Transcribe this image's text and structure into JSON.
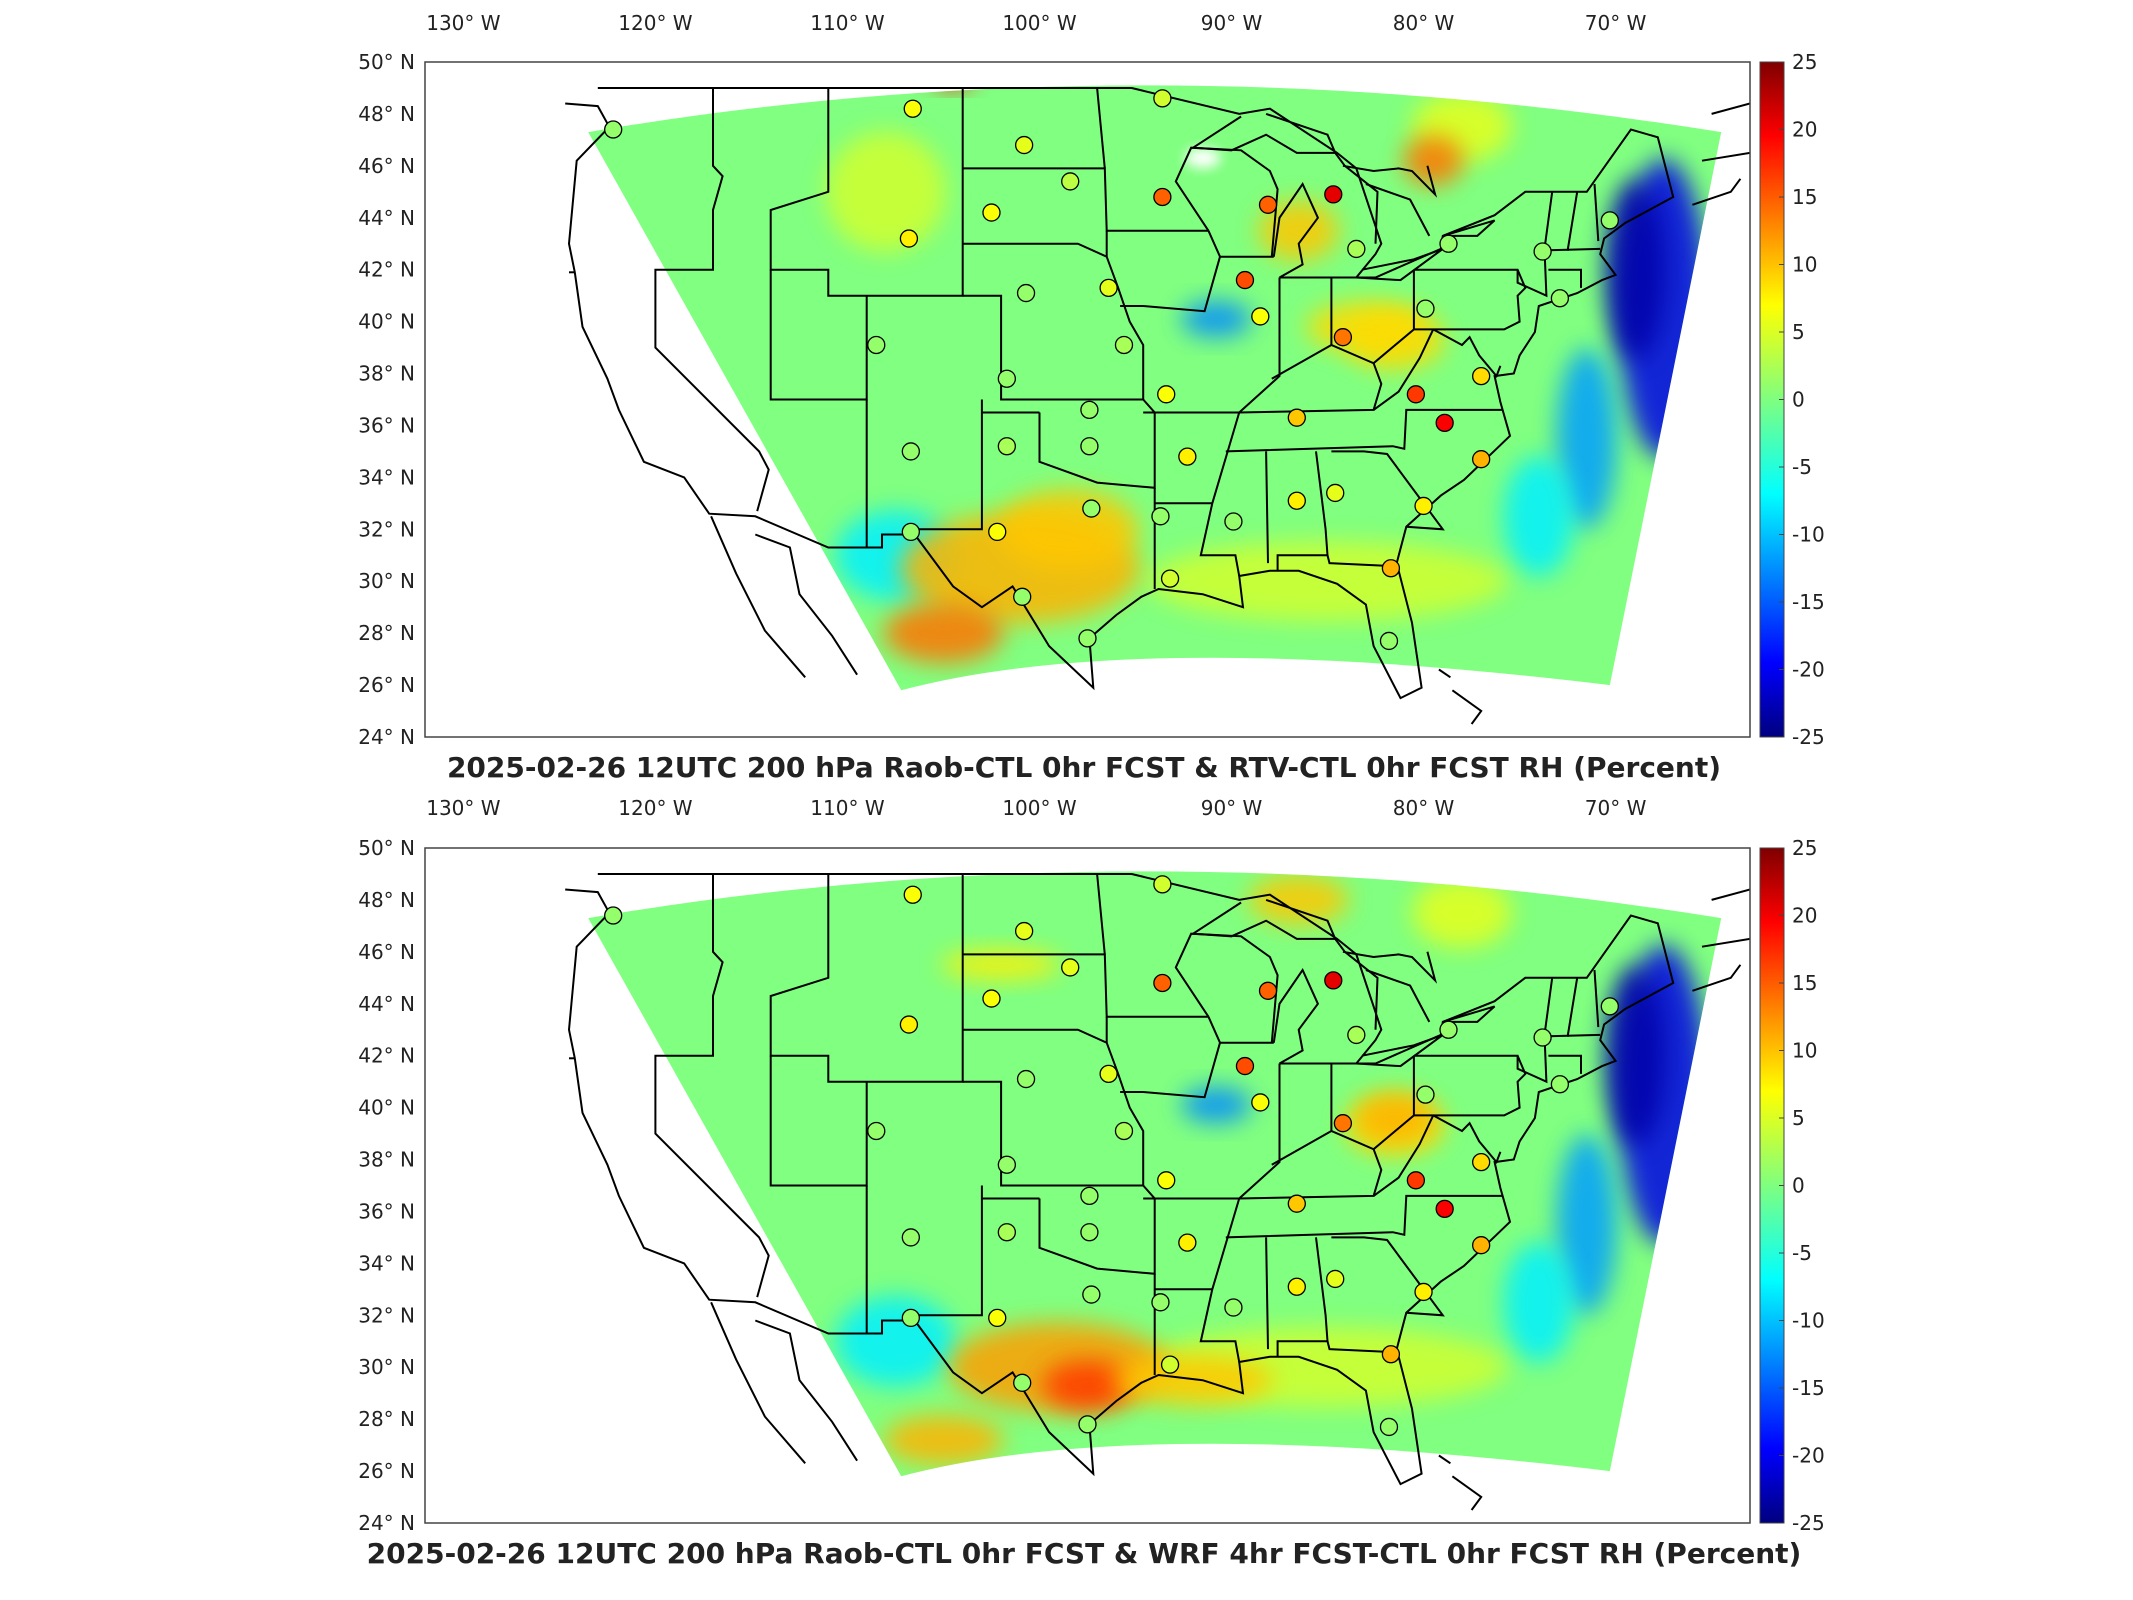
{
  "panels": [
    {
      "title": "2025-02-26 12UTC 200 hPa Raob-CTL 0hr FCST & RTV-CTL 0hr FCST RH (Percent)",
      "variant": "rtv"
    },
    {
      "title": "2025-02-26 12UTC 200 hPa Raob-CTL 0hr FCST & WRF 4hr FCST-CTL 0hr FCST RH (Percent)",
      "variant": "wrf"
    }
  ],
  "lon_labels": [
    "130° W",
    "120° W",
    "110° W",
    "100° W",
    "90° W",
    "80° W",
    "70° W"
  ],
  "lon_values": [
    -130,
    -120,
    -110,
    -100,
    -90,
    -80,
    -70
  ],
  "lat_labels": [
    "50° N",
    "48° N",
    "46° N",
    "44° N",
    "42° N",
    "40° N",
    "38° N",
    "36° N",
    "34° N",
    "32° N",
    "30° N",
    "28° N",
    "26° N",
    "24° N"
  ],
  "lat_values": [
    50,
    48,
    46,
    44,
    42,
    40,
    38,
    36,
    34,
    32,
    30,
    28,
    26,
    24
  ],
  "colorbar": {
    "ticks": [
      "25",
      "20",
      "15",
      "10",
      "5",
      "0",
      "-5",
      "-10",
      "-15",
      "-20",
      "-25"
    ],
    "min": -25,
    "max": 25,
    "colormap": "jet"
  },
  "map_extent": {
    "lon_min": -132,
    "lon_max": -63,
    "lat_min": 24,
    "lat_max": 50
  },
  "stations": [
    {
      "lon": -122.2,
      "lat": 47.4,
      "v_rtv": 1,
      "v_wrf": 1
    },
    {
      "lon": -106.6,
      "lat": 48.2,
      "v_rtv": 6,
      "v_wrf": 6
    },
    {
      "lon": -100.8,
      "lat": 46.8,
      "v_rtv": 5,
      "v_wrf": 5
    },
    {
      "lon": -93.6,
      "lat": 48.6,
      "v_rtv": 4,
      "v_wrf": 4
    },
    {
      "lon": -98.4,
      "lat": 45.4,
      "v_rtv": 3,
      "v_wrf": 5
    },
    {
      "lon": -93.6,
      "lat": 44.8,
      "v_rtv": 14,
      "v_wrf": 14
    },
    {
      "lon": -88.1,
      "lat": 44.5,
      "v_rtv": 14,
      "v_wrf": 14
    },
    {
      "lon": -84.7,
      "lat": 44.9,
      "v_rtv": 20,
      "v_wrf": 20
    },
    {
      "lon": -106.8,
      "lat": 43.2,
      "v_rtv": 7,
      "v_wrf": 7
    },
    {
      "lon": -102.5,
      "lat": 44.2,
      "v_rtv": 6,
      "v_wrf": 6
    },
    {
      "lon": -83.5,
      "lat": 42.8,
      "v_rtv": 2,
      "v_wrf": 2
    },
    {
      "lon": -78.7,
      "lat": 43.0,
      "v_rtv": 1,
      "v_wrf": 1
    },
    {
      "lon": -73.8,
      "lat": 42.7,
      "v_rtv": 1,
      "v_wrf": 1
    },
    {
      "lon": -70.3,
      "lat": 43.9,
      "v_rtv": 1,
      "v_wrf": 1
    },
    {
      "lon": -100.7,
      "lat": 41.1,
      "v_rtv": 1,
      "v_wrf": 1
    },
    {
      "lon": -96.4,
      "lat": 41.3,
      "v_rtv": 5,
      "v_wrf": 5
    },
    {
      "lon": -89.3,
      "lat": 41.6,
      "v_rtv": 15,
      "v_wrf": 15
    },
    {
      "lon": -88.5,
      "lat": 40.2,
      "v_rtv": 6,
      "v_wrf": 6
    },
    {
      "lon": -84.2,
      "lat": 39.4,
      "v_rtv": 13,
      "v_wrf": 13
    },
    {
      "lon": -79.9,
      "lat": 40.5,
      "v_rtv": 1,
      "v_wrf": 1
    },
    {
      "lon": -72.9,
      "lat": 40.9,
      "v_rtv": 1,
      "v_wrf": 1
    },
    {
      "lon": -108.5,
      "lat": 39.1,
      "v_rtv": 1,
      "v_wrf": 1
    },
    {
      "lon": -101.7,
      "lat": 37.8,
      "v_rtv": 1,
      "v_wrf": 1
    },
    {
      "lon": -95.6,
      "lat": 39.1,
      "v_rtv": 2,
      "v_wrf": 2
    },
    {
      "lon": -93.4,
      "lat": 37.2,
      "v_rtv": 6,
      "v_wrf": 6
    },
    {
      "lon": -80.4,
      "lat": 37.2,
      "v_rtv": 16,
      "v_wrf": 16
    },
    {
      "lon": -77.0,
      "lat": 37.9,
      "v_rtv": 8,
      "v_wrf": 8
    },
    {
      "lon": -86.6,
      "lat": 36.3,
      "v_rtv": 9,
      "v_wrf": 9
    },
    {
      "lon": -78.9,
      "lat": 36.1,
      "v_rtv": 19,
      "v_wrf": 19
    },
    {
      "lon": -106.7,
      "lat": 35.0,
      "v_rtv": 1,
      "v_wrf": 1
    },
    {
      "lon": -101.7,
      "lat": 35.2,
      "v_rtv": 2,
      "v_wrf": 2
    },
    {
      "lon": -97.4,
      "lat": 35.2,
      "v_rtv": 1,
      "v_wrf": 1
    },
    {
      "lon": -97.4,
      "lat": 36.6,
      "v_rtv": 1,
      "v_wrf": 1
    },
    {
      "lon": -92.3,
      "lat": 34.8,
      "v_rtv": 7,
      "v_wrf": 7
    },
    {
      "lon": -77.0,
      "lat": 34.7,
      "v_rtv": 10,
      "v_wrf": 10
    },
    {
      "lon": -89.9,
      "lat": 32.3,
      "v_rtv": 1,
      "v_wrf": 1
    },
    {
      "lon": -86.6,
      "lat": 33.1,
      "v_rtv": 7,
      "v_wrf": 7
    },
    {
      "lon": -84.6,
      "lat": 33.4,
      "v_rtv": 5,
      "v_wrf": 5
    },
    {
      "lon": -80.0,
      "lat": 32.9,
      "v_rtv": 7,
      "v_wrf": 7
    },
    {
      "lon": -97.3,
      "lat": 32.8,
      "v_rtv": 1,
      "v_wrf": 1
    },
    {
      "lon": -93.7,
      "lat": 32.5,
      "v_rtv": 1,
      "v_wrf": 1
    },
    {
      "lon": -106.7,
      "lat": 31.9,
      "v_rtv": 1,
      "v_wrf": 1
    },
    {
      "lon": -102.2,
      "lat": 31.9,
      "v_rtv": 6,
      "v_wrf": 6
    },
    {
      "lon": -100.9,
      "lat": 29.4,
      "v_rtv": 1,
      "v_wrf": 1
    },
    {
      "lon": -93.2,
      "lat": 30.1,
      "v_rtv": 4,
      "v_wrf": 4
    },
    {
      "lon": -81.7,
      "lat": 30.5,
      "v_rtv": 10,
      "v_wrf": 10
    },
    {
      "lon": -97.5,
      "lat": 27.8,
      "v_rtv": 1,
      "v_wrf": 1
    },
    {
      "lon": -81.8,
      "lat": 27.7,
      "v_rtv": 1,
      "v_wrf": 1
    }
  ]
}
